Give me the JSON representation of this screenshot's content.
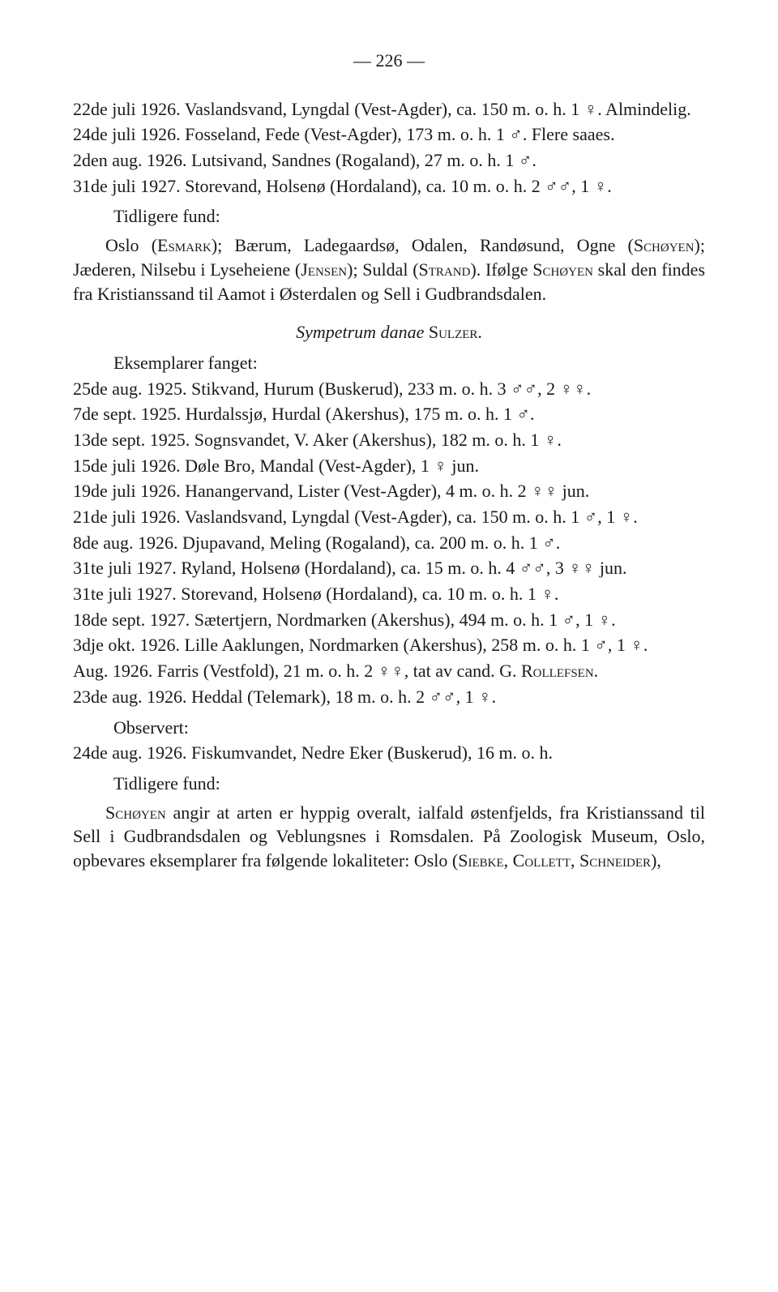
{
  "page_number": "— 226 —",
  "block1": {
    "e1": "22de juli 1926. Vaslandsvand, Lyngdal (Vest-Agder), ca. 150 m. o. h. 1 ♀. Almindelig.",
    "e2": "24de juli 1926. Fosseland, Fede (Vest-Agder), 173 m. o. h. 1 ♂. Flere saaes.",
    "e3": "2den aug. 1926. Lutsivand, Sandnes (Rogaland), 27 m. o. h. 1 ♂.",
    "e4": "31de juli 1927. Storevand, Holsenø (Hordaland), ca. 10 m. o. h. 2 ♂♂, 1 ♀.",
    "sub1": "Tidligere fund:",
    "para1_a": "Oslo (",
    "para1_b": "Esmark",
    "para1_c": "); Bærum, Ladegaardsø, Odalen, Randøsund, Ogne (",
    "para1_d": "Schøyen",
    "para1_e": "); Jæderen, Nilsebu i Lyseheiene (",
    "para1_f": "Jensen",
    "para1_g": "); Suldal (",
    "para1_h": "Strand",
    "para1_i": "). Ifølge ",
    "para1_j": "Schøyen",
    "para1_k": " skal den findes fra Kristianssand til Aamot i Østerdalen og Sell i Gudbrandsdalen."
  },
  "species": {
    "genus": "Sympetrum danae",
    "author": " Sulzer."
  },
  "block2": {
    "sub1": "Eksemplarer fanget:",
    "e1": "25de aug. 1925. Stikvand, Hurum (Buskerud), 233 m. o. h. 3 ♂♂, 2 ♀♀.",
    "e2": "7de sept. 1925. Hurdalssjø, Hurdal (Akershus), 175 m. o. h. 1 ♂.",
    "e3": "13de sept. 1925. Sognsvandet, V. Aker (Akershus), 182 m. o. h. 1 ♀.",
    "e4": "15de juli 1926. Døle Bro, Mandal (Vest-Agder), 1 ♀ jun.",
    "e5": "19de juli 1926. Hanangervand, Lister (Vest-Agder), 4 m. o. h. 2 ♀♀ jun.",
    "e6": "21de juli 1926. Vaslandsvand, Lyngdal (Vest-Agder), ca. 150 m. o. h. 1 ♂, 1 ♀.",
    "e7": "8de aug. 1926. Djupavand, Meling (Rogaland), ca. 200 m. o. h. 1 ♂.",
    "e8": "31te juli 1927. Ryland, Holsenø (Hordaland), ca. 15 m. o. h. 4 ♂♂, 3 ♀♀ jun.",
    "e9": "31te juli 1927. Storevand, Holsenø (Hordaland), ca. 10 m. o. h. 1 ♀.",
    "e10": "18de sept. 1927. Sætertjern, Nordmarken (Akershus), 494 m. o. h. 1 ♂, 1 ♀.",
    "e11": "3dje okt. 1926. Lille Aaklungen, Nordmarken (Akershus), 258 m. o. h. 1 ♂, 1 ♀.",
    "e12_a": "Aug. 1926. Farris (Vestfold), 21 m. o. h. 2 ♀♀, tat av cand. G. ",
    "e12_b": "Rollefsen",
    "e12_c": ".",
    "e13": "23de aug. 1926. Heddal (Telemark), 18 m. o. h. 2 ♂♂, 1 ♀.",
    "sub2": "Observert:",
    "e14": "24de aug. 1926. Fiskumvandet, Nedre Eker (Buskerud), 16 m. o. h.",
    "sub3": "Tidligere fund:",
    "para2_a": "Schøyen",
    "para2_b": " angir at arten er hyppig overalt, ialfald østenfjelds, fra Kristianssand til Sell i Gudbrandsdalen og Veblungsnes i Romsdalen. På Zoologisk Museum, Oslo, opbevares eksemplarer fra følgende lokaliteter: Oslo (",
    "para2_c": "Siebke",
    "para2_d": ", ",
    "para2_e": "Collett",
    "para2_f": ", ",
    "para2_g": "Schneider",
    "para2_h": "),"
  }
}
